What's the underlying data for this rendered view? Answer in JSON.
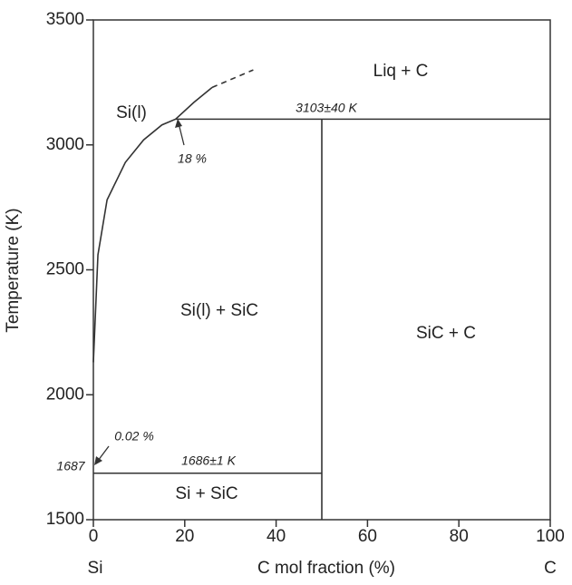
{
  "chart_data": {
    "type": "line",
    "xlabel": "C mol fraction (%)",
    "ylabel": "Temperature (K)",
    "x_end_labels": [
      "Si",
      "C"
    ],
    "xlim": [
      0,
      100
    ],
    "xticks": [
      0,
      20,
      40,
      60,
      80,
      100
    ],
    "ylim": [
      1500,
      3500
    ],
    "yticks": [
      1500,
      2000,
      2500,
      3000,
      3500
    ],
    "grid": false,
    "series": [
      {
        "color": "#333333",
        "dashed": false,
        "x": [
          0,
          1,
          3,
          7,
          11,
          15,
          18,
          22,
          26
        ],
        "values": [
          2130,
          2560,
          2780,
          2930,
          3020,
          3080,
          3103,
          3170,
          3230
        ]
      },
      {
        "color": "#333333",
        "dashed": true,
        "x": [
          26,
          35
        ],
        "values": [
          3230,
          3300
        ]
      },
      {
        "color": "#333333",
        "dashed": false,
        "x": [
          18,
          100
        ],
        "values": [
          3103,
          3103
        ]
      },
      {
        "color": "#333333",
        "dashed": false,
        "x": [
          0,
          50
        ],
        "values": [
          1686,
          1686
        ]
      },
      {
        "color": "#333333",
        "dashed": false,
        "x": [
          50,
          50
        ],
        "values": [
          1500,
          3103
        ]
      }
    ],
    "annotations": [
      "Si(l)",
      "Liq + C",
      "Si(l) + SiC",
      "SiC + C",
      "Si + SiC",
      "3103±40 K",
      "1686±1 K",
      "18 %",
      "0.02 %",
      "1687"
    ]
  }
}
